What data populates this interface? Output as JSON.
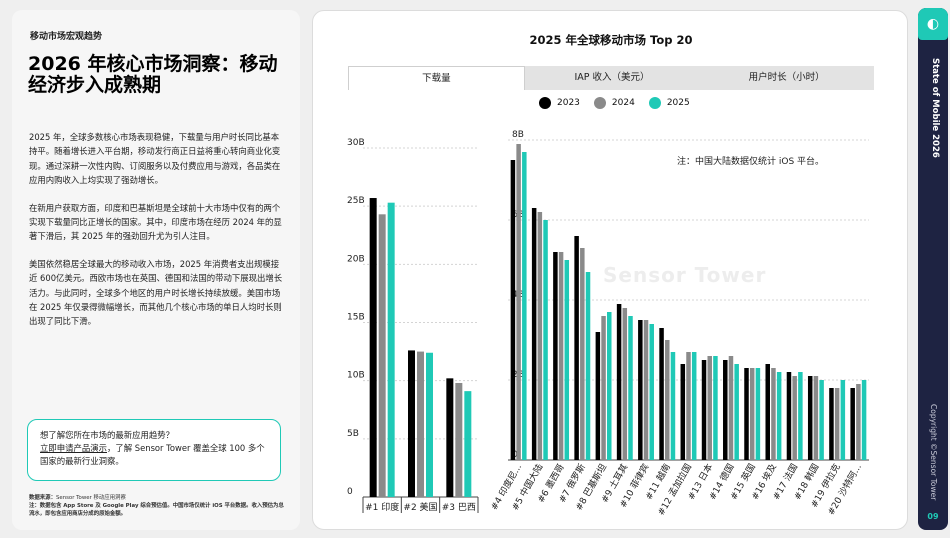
{
  "left": {
    "section": "移动市场宏观趋势",
    "title": "2026 年核心市场洞察：移动经济步入成熟期",
    "paragraphs": [
      "2025 年，全球多数核心市场表现稳健，下载量与用户时长同比基本持平。随着增长进入平台期，移动发行商正日益将重心转向商业化变现。通过深耕一次性内购、订阅服务以及付费应用与游戏，各品类在应用内购收入上均实现了强劲增长。",
      "在新用户获取方面，印度和巴基斯坦是全球前十大市场中仅有的两个实现下载量同比正增长的国家。其中，印度市场在经历 2024 年的显著下滑后，其 2025 年的强劲回升尤为引人注目。",
      "美国依然稳居全球最大的移动收入市场，2025 年消费者支出规模接近 600亿美元。西欧市场也在英国、德国和法国的带动下展现出增长活力。与此同时，全球多个地区的用户时长增长持续放缓。美国市场在 2025 年仅录得微幅增长，而其他几个核心市场的单日人均时长则出现了同比下滑。"
    ],
    "cta_line1": "想了解您所在市场的最新应用趋势？",
    "cta_link": "立即申请产品演示",
    "cta_rest": "，了解 Sensor Tower 覆盖全球 100 多个国家的最新行业洞察。",
    "footnote_label": "数据来源：",
    "footnote_source": "Sensor Tower 移动应用洞察",
    "footnote_line2_prefix": "注：数据包含 App Store 及 Google Play ",
    "footnote_line2_bold": "综合预估值",
    "footnote_line2_suffix": "。中国市场仅统计 iOS 平台数据。收入预估为总流水，即包含应用商店分成的原始金额。"
  },
  "card": {
    "title": "2025 年全球移动市场 Top 20",
    "tabs": [
      "下载量",
      "IAP 收入（美元）",
      "用户时长（小时）"
    ],
    "active_tab": 0,
    "note": "注：中国大陆数据仅统计 iOS 平台。",
    "watermark": "Sensor Tower"
  },
  "sidebar": {
    "title": "State of Mobile 2026",
    "copyright": "Copyright ©Sensor Tower",
    "page": "09"
  },
  "colors": {
    "accent": "#1fc9b6",
    "navy": "#1e2342",
    "s2023": "#000000",
    "s2024": "#8a8a8a",
    "s2025": "#1fc9b6"
  },
  "chart_data": [
    {
      "type": "bar",
      "title": "",
      "ylim": [
        0,
        30
      ],
      "yticks": [
        "0",
        "5B",
        "10B",
        "15B",
        "20B",
        "25B",
        "30B"
      ],
      "categories": [
        "#1 印度",
        "#2 美国",
        "#3 巴西"
      ],
      "series": [
        {
          "name": "2023",
          "values": [
            25.7,
            12.6,
            10.2
          ]
        },
        {
          "name": "2024",
          "values": [
            24.3,
            12.5,
            9.8
          ]
        },
        {
          "name": "2025",
          "values": [
            25.3,
            12.4,
            9.1
          ]
        }
      ],
      "grid": true,
      "legend": "top"
    },
    {
      "type": "bar",
      "title": "",
      "ylim": [
        0,
        8
      ],
      "yticks": [
        "0",
        "2B",
        "4B",
        "6B",
        "8B"
      ],
      "categories": [
        "#4 印度尼...",
        "#5 中国大陆",
        "#6 墨西哥",
        "#7 俄罗斯",
        "#8 巴基斯坦",
        "#9 土耳其",
        "#10 菲律宾",
        "#11 越南",
        "#12 孟加拉国",
        "#13 日本",
        "#14 德国",
        "#15 英国",
        "#16 埃及",
        "#17 法国",
        "#18 韩国",
        "#19 伊拉克",
        "#20 沙特阿..."
      ],
      "series": [
        {
          "name": "2023",
          "values": [
            7.5,
            6.3,
            5.2,
            5.6,
            3.2,
            3.9,
            3.5,
            3.3,
            2.4,
            2.5,
            2.5,
            2.3,
            2.4,
            2.2,
            2.1,
            1.8,
            1.8
          ]
        },
        {
          "name": "2024",
          "values": [
            7.9,
            6.2,
            5.2,
            5.3,
            3.6,
            3.8,
            3.5,
            3.0,
            2.7,
            2.6,
            2.6,
            2.3,
            2.3,
            2.1,
            2.1,
            1.8,
            1.9
          ]
        },
        {
          "name": "2025",
          "values": [
            7.7,
            6.0,
            5.0,
            4.7,
            3.7,
            3.6,
            3.4,
            2.7,
            2.7,
            2.6,
            2.4,
            2.3,
            2.2,
            2.2,
            2.0,
            2.0,
            2.0
          ]
        }
      ],
      "grid": true,
      "legend": "top"
    }
  ]
}
